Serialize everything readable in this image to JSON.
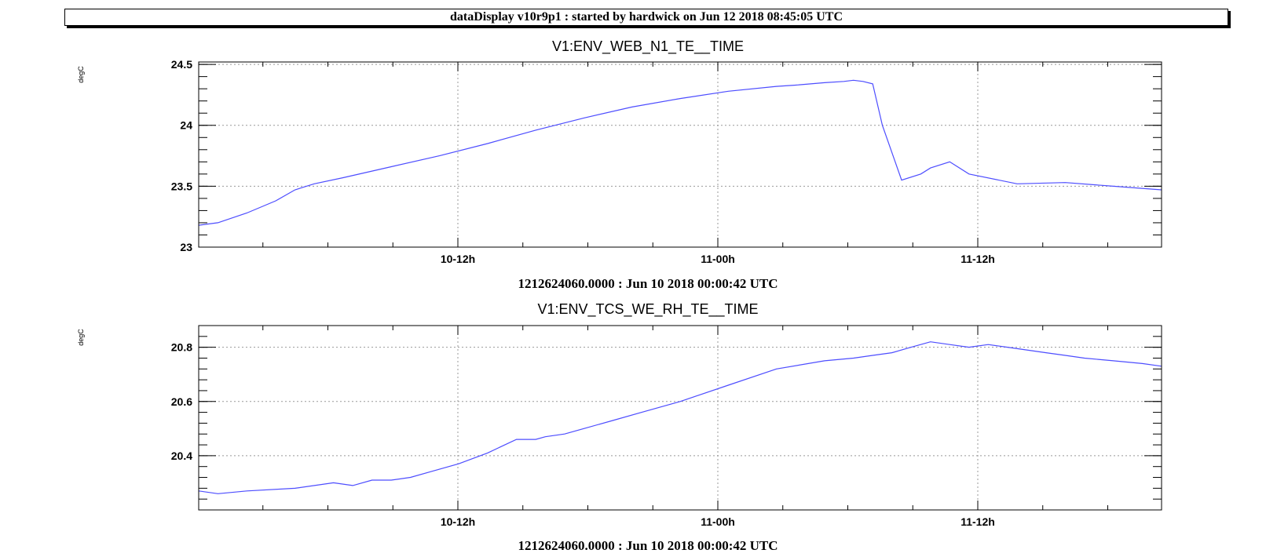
{
  "header": {
    "title": "dataDisplay v10r9p1 : started by hardwick on Jun 12 2018 08:45:05 UTC"
  },
  "chart_data": [
    {
      "type": "line",
      "title": "V1:ENV_WEB_N1_TE__TIME",
      "ylabel": "degC",
      "xlabel": "1212624060.0000 : Jun 10 2018 00:00:42 UTC",
      "ylim": [
        23,
        24.52
      ],
      "yticks": [
        23,
        23.5,
        24,
        24.5
      ],
      "ytick_labels": [
        "23",
        "23.5",
        "24",
        "24.5"
      ],
      "xticks": [
        "10-12h",
        "11-00h",
        "11-12h"
      ],
      "grid": true,
      "color": "#4d4dff",
      "series": [
        {
          "x": [
            0,
            0.02,
            0.05,
            0.08,
            0.1,
            0.12,
            0.15,
            0.2,
            0.25,
            0.3,
            0.35,
            0.4,
            0.45,
            0.5,
            0.55,
            0.6,
            0.62,
            0.65,
            0.67,
            0.68,
            0.69,
            0.7,
            0.71,
            0.73,
            0.75,
            0.76,
            0.78,
            0.8,
            0.85,
            0.9,
            0.95,
            1.0
          ],
          "y": [
            23.18,
            23.2,
            23.28,
            23.38,
            23.47,
            23.52,
            23.57,
            23.66,
            23.75,
            23.85,
            23.96,
            24.06,
            24.15,
            24.22,
            24.28,
            24.32,
            24.33,
            24.35,
            24.36,
            24.37,
            24.36,
            24.34,
            24.0,
            23.55,
            23.6,
            23.65,
            23.7,
            23.6,
            23.52,
            23.53,
            23.5,
            23.47
          ]
        }
      ]
    },
    {
      "type": "line",
      "title": "V1:ENV_TCS_WE_RH_TE__TIME",
      "ylabel": "degC",
      "xlabel": "1212624060.0000 : Jun 10 2018 00:00:42 UTC",
      "ylim": [
        20.2,
        20.88
      ],
      "yticks": [
        20.4,
        20.6,
        20.8
      ],
      "ytick_labels": [
        "20.4",
        "20.6",
        "20.8"
      ],
      "xticks": [
        "10-12h",
        "11-00h",
        "11-12h"
      ],
      "grid": true,
      "color": "#4d4dff",
      "series": [
        {
          "x": [
            0,
            0.02,
            0.05,
            0.1,
            0.14,
            0.16,
            0.18,
            0.2,
            0.22,
            0.24,
            0.27,
            0.3,
            0.33,
            0.35,
            0.36,
            0.38,
            0.4,
            0.43,
            0.46,
            0.5,
            0.55,
            0.6,
            0.65,
            0.68,
            0.7,
            0.72,
            0.74,
            0.76,
            0.78,
            0.8,
            0.82,
            0.84,
            0.86,
            0.88,
            0.9,
            0.92,
            0.95,
            0.98,
            1.0
          ],
          "y": [
            20.27,
            20.26,
            20.27,
            20.28,
            20.3,
            20.29,
            20.31,
            20.31,
            20.32,
            20.34,
            20.37,
            20.41,
            20.46,
            20.46,
            20.47,
            20.48,
            20.5,
            20.53,
            20.56,
            20.6,
            20.66,
            20.72,
            20.75,
            20.76,
            20.77,
            20.78,
            20.8,
            20.82,
            20.81,
            20.8,
            20.81,
            20.8,
            20.79,
            20.78,
            20.77,
            20.76,
            20.75,
            20.74,
            20.73
          ]
        }
      ]
    }
  ]
}
